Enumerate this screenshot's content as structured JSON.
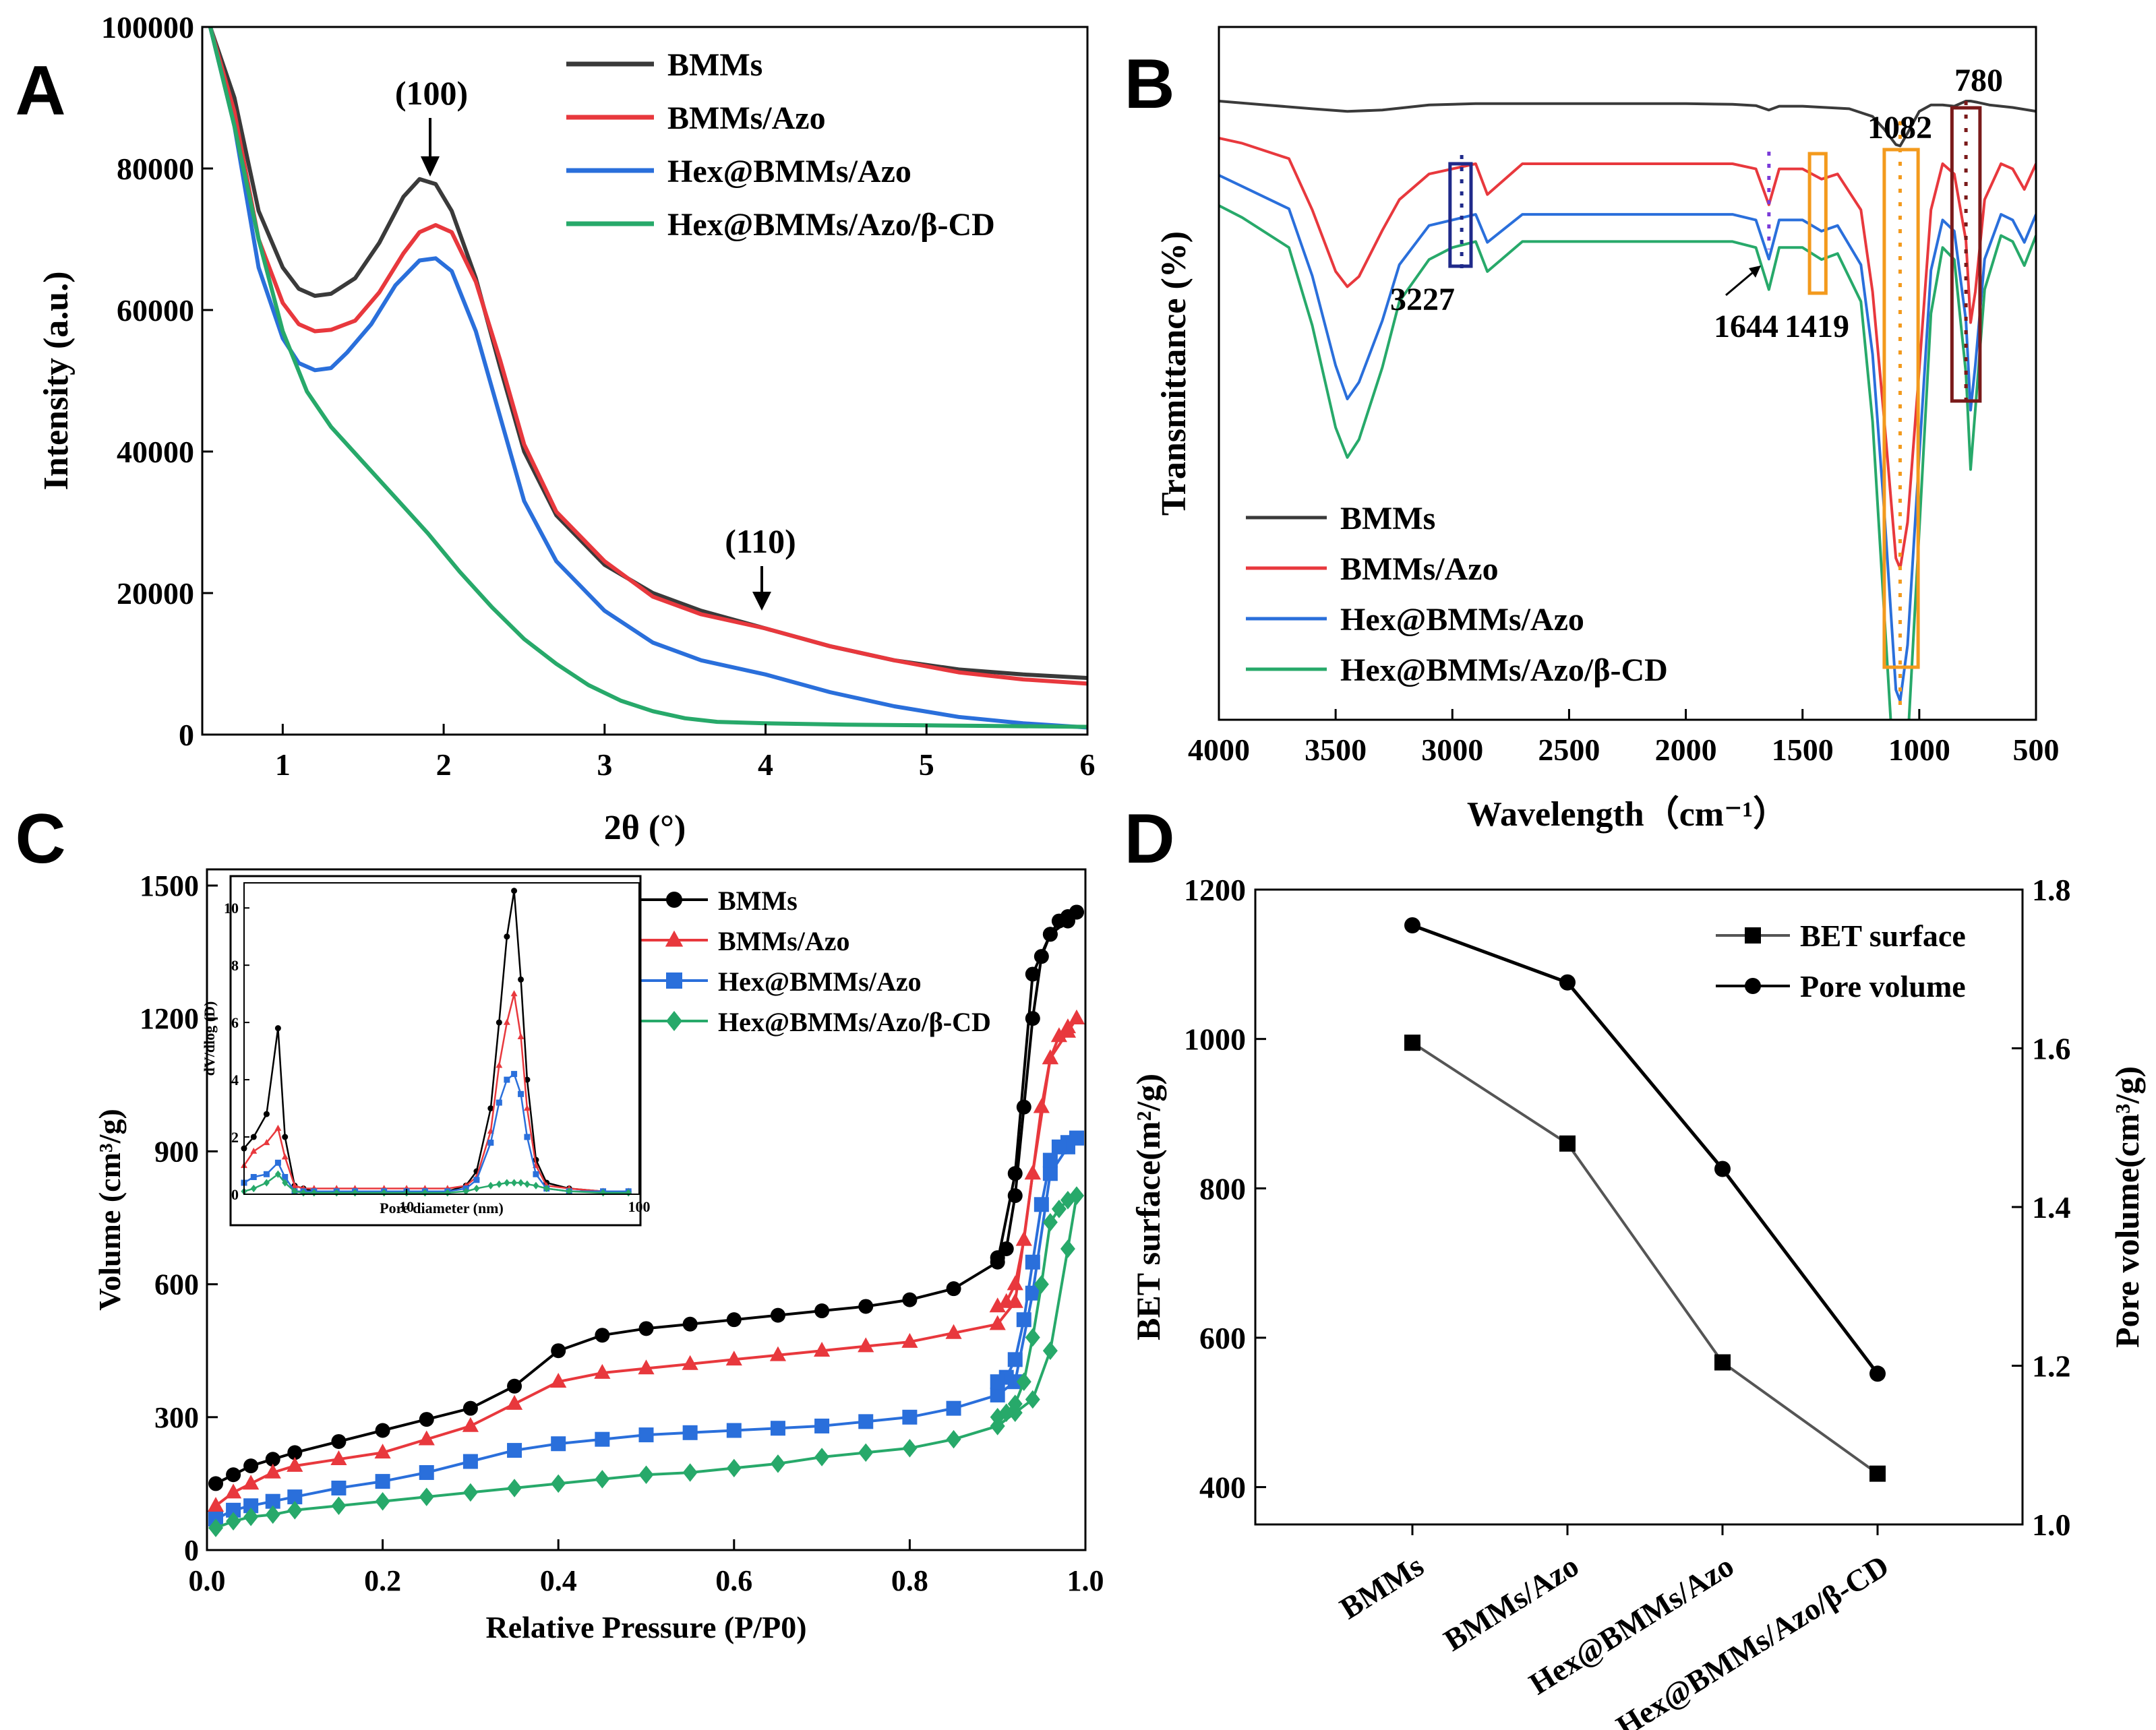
{
  "colors": {
    "black": "#3a3a3a",
    "red": "#e8383d",
    "blue": "#2a6fdb",
    "green": "#27a96a",
    "navy": "#1f2a8a",
    "orange": "#f39a1d",
    "maroon": "#7a1a1a"
  },
  "chart_data": [
    {
      "panel": "A",
      "type": "line",
      "xlabel": "2θ (°)",
      "ylabel": "Intensity (a.u.)",
      "xlim": [
        0.5,
        6
      ],
      "ylim": [
        0,
        100000
      ],
      "xticks": [
        "1",
        "2",
        "3",
        "4",
        "5",
        "6"
      ],
      "yticks": [
        "0",
        "20000",
        "40000",
        "60000",
        "80000",
        "100000"
      ],
      "annotations": [
        "(100)",
        "(110)"
      ],
      "series": [
        {
          "name": "BMMs",
          "x": [
            0.55,
            0.7,
            0.85,
            1.0,
            1.1,
            1.2,
            1.3,
            1.45,
            1.6,
            1.75,
            1.85,
            1.95,
            2.05,
            2.2,
            2.35,
            2.5,
            2.7,
            3.0,
            3.3,
            3.6,
            4.0,
            4.4,
            4.8,
            5.2,
            5.6,
            6.0
          ],
          "y": [
            100000,
            90000,
            74000,
            66000,
            63000,
            62000,
            62300,
            64500,
            69500,
            76000,
            78500,
            77800,
            74000,
            64500,
            52000,
            40000,
            31000,
            24000,
            20000,
            17500,
            15000,
            12500,
            10500,
            9200,
            8500,
            8000
          ]
        },
        {
          "name": "BMMs/Azo",
          "x": [
            0.55,
            0.7,
            0.85,
            1.0,
            1.1,
            1.2,
            1.3,
            1.45,
            1.6,
            1.75,
            1.85,
            1.95,
            2.05,
            2.2,
            2.35,
            2.5,
            2.7,
            3.0,
            3.3,
            3.6,
            4.0,
            4.4,
            4.8,
            5.2,
            5.6,
            6.0
          ],
          "y": [
            100000,
            88000,
            70000,
            61000,
            58000,
            57000,
            57200,
            58500,
            62500,
            68000,
            71000,
            72000,
            71000,
            64000,
            53000,
            41000,
            31500,
            24500,
            19500,
            17000,
            15000,
            12500,
            10500,
            8800,
            7800,
            7200
          ]
        },
        {
          "name": "Hex@BMMs/Azo",
          "x": [
            0.55,
            0.7,
            0.85,
            1.0,
            1.1,
            1.2,
            1.3,
            1.4,
            1.55,
            1.7,
            1.85,
            1.95,
            2.05,
            2.2,
            2.35,
            2.5,
            2.7,
            3.0,
            3.3,
            3.6,
            4.0,
            4.4,
            4.8,
            5.2,
            5.6,
            6.0
          ],
          "y": [
            100000,
            86000,
            66000,
            56000,
            52500,
            51500,
            51800,
            54000,
            58000,
            63500,
            67000,
            67300,
            65500,
            57000,
            45000,
            33000,
            24500,
            17500,
            13000,
            10500,
            8500,
            6000,
            4000,
            2500,
            1600,
            1000
          ]
        },
        {
          "name": "Hex@BMMs/Azo/β-CD",
          "x": [
            0.55,
            0.7,
            0.85,
            1.0,
            1.15,
            1.3,
            1.5,
            1.7,
            1.9,
            2.1,
            2.3,
            2.5,
            2.7,
            2.9,
            3.1,
            3.3,
            3.5,
            3.7,
            4.0,
            4.5,
            5.0,
            5.5,
            6.0
          ],
          "y": [
            100000,
            86000,
            70000,
            57000,
            48500,
            43500,
            38500,
            33500,
            28500,
            23000,
            18000,
            13500,
            10000,
            7000,
            4800,
            3300,
            2300,
            1800,
            1600,
            1400,
            1300,
            1200,
            1100
          ]
        }
      ]
    },
    {
      "panel": "B",
      "type": "line",
      "xlabel": "Wavelength（cm⁻¹）",
      "ylabel": "Transmittance (%)",
      "xlim": [
        4000,
        500
      ],
      "xticks": [
        "4000",
        "3500",
        "3000",
        "2500",
        "2000",
        "1500",
        "1000",
        "500"
      ],
      "peak_labels": [
        "3227",
        "1644",
        "1419",
        "1082",
        "780"
      ],
      "series": [
        {
          "name": "BMMs",
          "x": [
            4000,
            3800,
            3600,
            3450,
            3300,
            3100,
            2900,
            2600,
            2400,
            2200,
            2000,
            1800,
            1700,
            1644,
            1600,
            1500,
            1300,
            1200,
            1150,
            1100,
            1082,
            1050,
            1000,
            950,
            900,
            850,
            800,
            780,
            750,
            700,
            600,
            500
          ],
          "y": [
            100,
            97,
            94,
            92,
            93,
            97,
            98,
            98,
            98,
            98,
            98,
            97.5,
            96.5,
            93,
            96,
            96,
            94,
            88,
            78,
            66,
            65,
            75,
            92,
            97,
            97,
            96,
            100,
            100,
            99,
            97,
            95,
            92
          ]
        },
        {
          "name": "BMMs/Azo",
          "x": [
            4000,
            3900,
            3700,
            3600,
            3500,
            3450,
            3400,
            3300,
            3227,
            3100,
            3000,
            2900,
            2850,
            2700,
            2600,
            2400,
            2200,
            2000,
            1800,
            1700,
            1644,
            1600,
            1500,
            1419,
            1350,
            1250,
            1200,
            1150,
            1100,
            1082,
            1050,
            1000,
            950,
            900,
            850,
            800,
            780,
            760,
            720,
            650,
            600,
            550,
            500
          ],
          "y": [
            100,
            99,
            96,
            86,
            74,
            71,
            73,
            82,
            88,
            93,
            94,
            95,
            89,
            95,
            95,
            95,
            95,
            95,
            95,
            94,
            87,
            94,
            94,
            92,
            93,
            86,
            70,
            45,
            18,
            16,
            25,
            55,
            86,
            95,
            93,
            80,
            64,
            70,
            88,
            95,
            94,
            90,
            95
          ]
        },
        {
          "name": "Hex@BMMs/Azo",
          "x": [
            4000,
            3900,
            3700,
            3600,
            3500,
            3450,
            3400,
            3300,
            3227,
            3100,
            3000,
            2900,
            2850,
            2700,
            2600,
            2400,
            2200,
            2000,
            1800,
            1700,
            1644,
            1600,
            1500,
            1419,
            1350,
            1250,
            1200,
            1150,
            1100,
            1082,
            1050,
            1000,
            950,
            900,
            850,
            800,
            780,
            760,
            720,
            650,
            600,
            550,
            500
          ],
          "y": [
            100,
            98,
            94,
            82,
            66,
            60,
            63,
            74,
            84,
            91,
            92,
            93,
            88,
            93,
            93,
            93,
            93,
            93,
            93,
            92,
            85,
            92,
            92,
            90,
            91,
            84,
            68,
            40,
            8,
            6,
            16,
            50,
            83,
            92,
            90,
            74,
            58,
            66,
            85,
            93,
            92,
            88,
            93
          ]
        },
        {
          "name": "Hex@BMMs/Azo/β-CD",
          "x": [
            4000,
            3900,
            3700,
            3600,
            3500,
            3450,
            3400,
            3300,
            3227,
            3100,
            3000,
            2900,
            2850,
            2700,
            2600,
            2400,
            2200,
            2000,
            1800,
            1700,
            1644,
            1600,
            1500,
            1419,
            1350,
            1250,
            1200,
            1150,
            1100,
            1082,
            1050,
            1000,
            950,
            900,
            850,
            800,
            780,
            760,
            720,
            650,
            600,
            550,
            500
          ],
          "y": [
            100,
            98,
            93,
            80,
            63,
            58,
            61,
            73,
            84,
            91,
            93,
            94,
            89,
            94,
            94,
            94,
            94,
            94,
            94,
            93,
            86,
            93,
            93,
            91,
            92,
            84,
            64,
            32,
            0,
            -2,
            10,
            46,
            82,
            93,
            91,
            72,
            56,
            66,
            86,
            95,
            94,
            90,
            95
          ]
        }
      ]
    },
    {
      "panel": "C",
      "type": "scatter",
      "xlabel": "Relative Pressure (P/P0)",
      "ylabel": "Volume (cm³/g)",
      "xlim": [
        0,
        1.0
      ],
      "ylim": [
        0,
        1500
      ],
      "xticks": [
        "0.0",
        "0.2",
        "0.4",
        "0.6",
        "0.8",
        "1.0"
      ],
      "yticks": [
        "0",
        "300",
        "600",
        "900",
        "1200",
        "1500"
      ],
      "x_ads": [
        0.01,
        0.03,
        0.05,
        0.075,
        0.1,
        0.15,
        0.2,
        0.25,
        0.3,
        0.35,
        0.4,
        0.45,
        0.5,
        0.55,
        0.6,
        0.65,
        0.7,
        0.75,
        0.8,
        0.85,
        0.9,
        0.92,
        0.94,
        0.96,
        0.98,
        0.99
      ],
      "x_des": [
        0.99,
        0.98,
        0.97,
        0.96,
        0.95,
        0.94,
        0.93,
        0.92,
        0.91,
        0.9
      ],
      "series": [
        {
          "name": "BMMs",
          "marker": "circle",
          "adsorption": [
            150,
            170,
            190,
            205,
            220,
            245,
            270,
            295,
            320,
            370,
            450,
            485,
            500,
            510,
            520,
            530,
            540,
            550,
            565,
            590,
            650,
            850,
            1300,
            1390,
            1420,
            1440
          ],
          "desorption": [
            1440,
            1430,
            1420,
            1390,
            1340,
            1200,
            1000,
            800,
            680,
            660
          ]
        },
        {
          "name": "BMMs/Azo",
          "marker": "triangle",
          "adsorption": [
            100,
            130,
            150,
            175,
            190,
            205,
            220,
            250,
            280,
            330,
            380,
            400,
            410,
            420,
            430,
            440,
            450,
            460,
            470,
            490,
            510,
            560,
            850,
            1110,
            1170,
            1200
          ],
          "desorption": [
            1200,
            1180,
            1160,
            1110,
            1000,
            850,
            700,
            600,
            560,
            550
          ]
        },
        {
          "name": "Hex@BMMs/Azo",
          "marker": "square",
          "adsorption": [
            70,
            90,
            100,
            110,
            120,
            140,
            155,
            175,
            200,
            225,
            240,
            250,
            260,
            265,
            270,
            275,
            280,
            290,
            300,
            320,
            350,
            380,
            580,
            850,
            910,
            930
          ],
          "desorption": [
            930,
            920,
            910,
            880,
            780,
            650,
            520,
            430,
            390,
            380
          ]
        },
        {
          "name": "Hex@BMMs/Azo/β-CD",
          "marker": "diamond",
          "adsorption": [
            50,
            65,
            75,
            80,
            90,
            100,
            110,
            120,
            130,
            140,
            150,
            160,
            170,
            175,
            185,
            195,
            210,
            220,
            230,
            250,
            280,
            310,
            340,
            450,
            680,
            800
          ],
          "desorption": [
            800,
            790,
            770,
            740,
            600,
            480,
            380,
            330,
            310,
            300
          ]
        }
      ]
    },
    {
      "panel": "C-inset",
      "type": "line",
      "xlabel": "Pore diameter (nm)",
      "ylabel": "dV/dlog (D)",
      "xscale": "log",
      "xlim": [
        2,
        100
      ],
      "ylim": [
        0,
        10.5
      ],
      "xticks": [
        "10",
        "100"
      ],
      "yticks": [
        "0",
        "2",
        "4",
        "6",
        "8",
        "10"
      ],
      "x": [
        2.0,
        2.2,
        2.5,
        2.8,
        3.0,
        3.3,
        3.6,
        4,
        5,
        6,
        8,
        10,
        12,
        15,
        18,
        20,
        23,
        25,
        27,
        29,
        31,
        33,
        36,
        40,
        50,
        70,
        90
      ],
      "series": [
        {
          "name": "BMMs",
          "y": [
            1.6,
            2.0,
            2.8,
            5.8,
            2.0,
            0.3,
            0.2,
            0.1,
            0.1,
            0.1,
            0.1,
            0.1,
            0.1,
            0.1,
            0.3,
            0.8,
            3.0,
            6.0,
            9.0,
            10.6,
            7.5,
            4.0,
            1.2,
            0.4,
            0.2,
            0.1,
            0.1
          ]
        },
        {
          "name": "BMMs/Azo",
          "y": [
            1.0,
            1.5,
            1.8,
            2.3,
            1.3,
            0.3,
            0.2,
            0.2,
            0.2,
            0.2,
            0.2,
            0.2,
            0.2,
            0.2,
            0.3,
            0.6,
            2.2,
            4.5,
            6.0,
            7.0,
            5.5,
            3.0,
            1.0,
            0.3,
            0.2,
            0.1,
            0.1
          ]
        },
        {
          "name": "Hex@BMMs/Azo",
          "y": [
            0.4,
            0.6,
            0.7,
            1.1,
            0.6,
            0.1,
            0.1,
            0.1,
            0.1,
            0.1,
            0.1,
            0.1,
            0.1,
            0.1,
            0.2,
            0.5,
            1.8,
            3.2,
            4.0,
            4.2,
            3.5,
            2.0,
            0.7,
            0.2,
            0.1,
            0.1,
            0.1
          ]
        },
        {
          "name": "Hex@BMMs/Azo/β-CD",
          "y": [
            0.1,
            0.2,
            0.4,
            0.7,
            0.4,
            0.1,
            0.05,
            0.05,
            0.05,
            0.05,
            0.05,
            0.05,
            0.05,
            0.05,
            0.1,
            0.2,
            0.3,
            0.35,
            0.4,
            0.4,
            0.4,
            0.35,
            0.3,
            0.2,
            0.1,
            0.05,
            0.05
          ]
        }
      ]
    },
    {
      "panel": "D",
      "type": "line",
      "categories": [
        "BMMs",
        "BMMs/Azo",
        "Hex@BMMs/Azo",
        "Hex@BMMs/Azo/β-CD"
      ],
      "ylabel": "BET surface(m²/g)",
      "y2label": "Pore volume(cm³/g)",
      "ylim": [
        350,
        1200
      ],
      "y2lim": [
        1.0,
        1.8
      ],
      "yticks": [
        "400",
        "600",
        "800",
        "1000",
        "1200"
      ],
      "y2ticks": [
        "1.0",
        "1.2",
        "1.4",
        "1.6",
        "1.8"
      ],
      "series": [
        {
          "name": "BET surface",
          "axis": "left",
          "marker": "square",
          "values": [
            995,
            860,
            567,
            418
          ]
        },
        {
          "name": "Pore volume",
          "axis": "right",
          "marker": "circle",
          "values": [
            1.755,
            1.683,
            1.448,
            1.19
          ]
        }
      ]
    }
  ]
}
